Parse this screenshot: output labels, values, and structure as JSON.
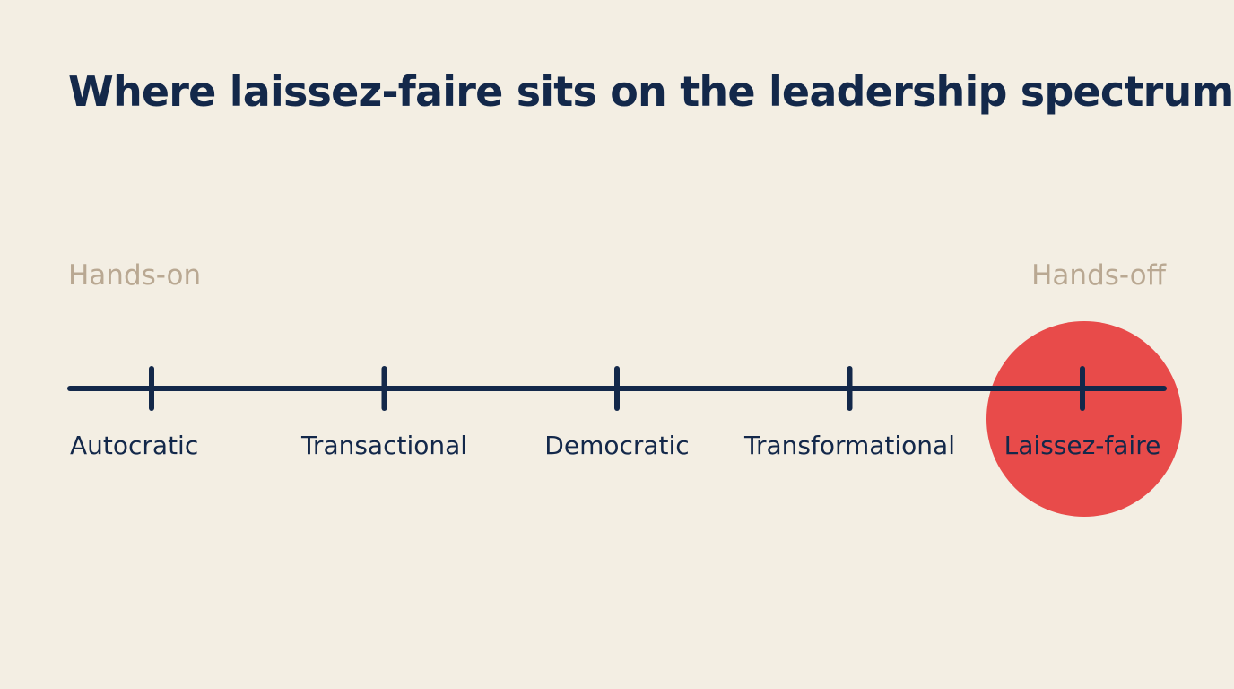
{
  "title": "Where laissez-faire sits on the leadership spectrum",
  "ends": {
    "left": "Hands-on",
    "right": "Hands-off"
  },
  "styles": [
    {
      "label": "Autocratic",
      "highlighted": false
    },
    {
      "label": "Transactional",
      "highlighted": false
    },
    {
      "label": "Democratic",
      "highlighted": false
    },
    {
      "label": "Transformational",
      "highlighted": false
    },
    {
      "label": "Laissez-faire",
      "highlighted": true
    }
  ],
  "colors": {
    "background": "#f3eee3",
    "ink": "#13284a",
    "muted": "#b9a892",
    "highlight": "#e84b4a"
  }
}
